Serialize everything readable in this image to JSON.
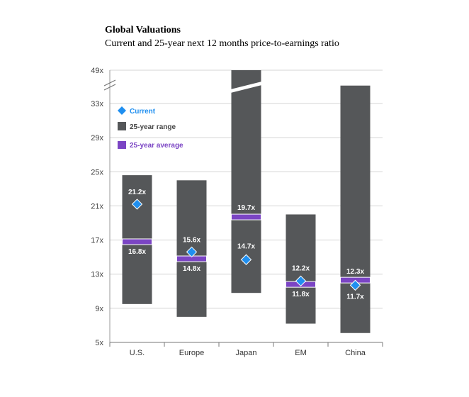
{
  "title": "Global Valuations",
  "subtitle": "Current and 25-year next 12 months price-to-earnings ratio",
  "colors": {
    "range": "#555759",
    "average": "#7b45c4",
    "current": "#1f8ff0",
    "grid": "#d4d4d4",
    "legend_current_text": "#1f8ff0",
    "legend_range_text": "#444444",
    "legend_average_text": "#7b45c4"
  },
  "legend": {
    "current": "Current",
    "range": "25-year range",
    "average": "25-year average"
  },
  "chart_data": {
    "type": "bar",
    "title": "Global Valuations",
    "subtitle": "Current and 25-year next 12 months price-to-earnings ratio",
    "xlabel": "",
    "ylabel": "",
    "ylim": [
      5,
      33
    ],
    "axis_break": {
      "lower": 33,
      "upper": 49,
      "top_label": "49x"
    },
    "yticks": [
      "5x",
      "9x",
      "13x",
      "17x",
      "21x",
      "25x",
      "29x",
      "33x"
    ],
    "grid": true,
    "legend_position": "top-left",
    "categories": [
      "U.S.",
      "Europe",
      "Japan",
      "EM",
      "China"
    ],
    "series": [
      {
        "name": "25-year range",
        "low": [
          9.5,
          8.0,
          10.8,
          7.2,
          6.1
        ],
        "high": [
          24.6,
          24.0,
          49,
          20.0,
          35.1
        ]
      },
      {
        "name": "25-year average",
        "values": [
          16.8,
          14.8,
          19.7,
          11.8,
          12.3
        ],
        "labels": [
          "16.8x",
          "14.8x",
          "19.7x",
          "11.8x",
          "12.3x"
        ]
      },
      {
        "name": "Current",
        "values": [
          21.2,
          15.6,
          14.7,
          12.2,
          11.7
        ],
        "labels": [
          "21.2x",
          "15.6x",
          "14.7x",
          "12.2x",
          "11.7x"
        ]
      }
    ]
  }
}
